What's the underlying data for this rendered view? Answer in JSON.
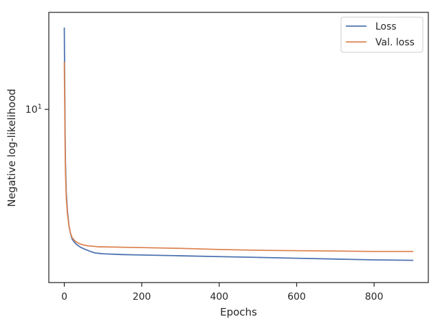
{
  "chart_data": {
    "type": "line",
    "title": "",
    "xlabel": "Epochs",
    "ylabel": "Negative log-likelihood",
    "yscale": "log",
    "xlim": [
      -40,
      940
    ],
    "ylim": [
      2.55,
      21.5
    ],
    "grid": false,
    "legend_position": "top-right",
    "x_ticks": [
      0,
      200,
      400,
      600,
      800
    ],
    "x_tick_labels": [
      "0",
      "200",
      "400",
      "600",
      "800"
    ],
    "y_ticks": [
      10
    ],
    "y_tick_label": {
      "base": "10",
      "exp": "1"
    },
    "series": [
      {
        "name": "Loss",
        "color": "#4c72b0",
        "x": [
          0,
          1,
          2,
          3,
          5,
          8,
          12,
          16,
          20,
          25,
          30,
          40,
          50,
          60,
          70,
          80,
          90,
          100,
          150,
          200,
          300,
          400,
          500,
          600,
          700,
          800,
          900
        ],
        "y": [
          19.0,
          12.5,
          8.6,
          6.6,
          5.2,
          4.5,
          4.0,
          3.75,
          3.6,
          3.52,
          3.46,
          3.38,
          3.33,
          3.29,
          3.25,
          3.22,
          3.21,
          3.2,
          3.18,
          3.17,
          3.15,
          3.13,
          3.11,
          3.09,
          3.07,
          3.05,
          3.04
        ]
      },
      {
        "name": "Val. loss",
        "color": "#dd8452",
        "x": [
          0,
          1,
          2,
          3,
          5,
          8,
          12,
          16,
          20,
          25,
          30,
          40,
          50,
          60,
          70,
          80,
          90,
          100,
          150,
          200,
          300,
          400,
          500,
          600,
          700,
          800,
          900
        ],
        "y": [
          14.5,
          10.5,
          7.6,
          6.1,
          5.0,
          4.4,
          3.98,
          3.77,
          3.64,
          3.57,
          3.52,
          3.46,
          3.43,
          3.41,
          3.4,
          3.39,
          3.38,
          3.38,
          3.37,
          3.36,
          3.34,
          3.31,
          3.29,
          3.28,
          3.27,
          3.26,
          3.26
        ]
      }
    ]
  }
}
